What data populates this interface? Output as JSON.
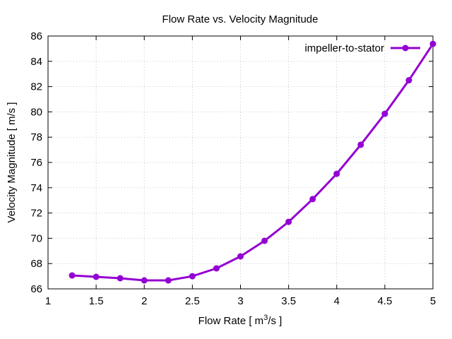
{
  "chart_data": {
    "type": "line",
    "title": "Flow Rate vs. Velocity Magnitude",
    "xlabel_parts": [
      "Flow Rate [ m",
      "3",
      "/s ]"
    ],
    "xlabel": "Flow Rate [ m3/s ]",
    "ylabel": "Velocity Magnitude [ m/s ]",
    "xlim": [
      1,
      5
    ],
    "ylim": [
      66,
      86
    ],
    "xticks": [
      1,
      1.5,
      2,
      2.5,
      3,
      3.5,
      4,
      4.5,
      5
    ],
    "xtick_labels": [
      "1",
      "1.5",
      "2",
      "2.5",
      "3",
      "3.5",
      "4",
      "4.5",
      "5"
    ],
    "yticks": [
      66,
      68,
      70,
      72,
      74,
      76,
      78,
      80,
      82,
      84,
      86
    ],
    "ytick_labels": [
      "66",
      "68",
      "70",
      "72",
      "74",
      "76",
      "78",
      "80",
      "82",
      "84",
      "86"
    ],
    "grid": true,
    "legend_position": "top-right",
    "series": [
      {
        "name": "impeller-to-stator",
        "color": "#9400d3",
        "x": [
          1.25,
          1.5,
          1.75,
          2.0,
          2.25,
          2.5,
          2.75,
          3.0,
          3.25,
          3.5,
          3.75,
          4.0,
          4.25,
          4.5,
          4.75,
          5.0
        ],
        "y": [
          67.06,
          66.95,
          66.84,
          66.67,
          66.67,
          67.0,
          67.62,
          68.57,
          69.8,
          71.3,
          73.1,
          75.1,
          77.4,
          79.85,
          82.5,
          85.38
        ]
      }
    ]
  }
}
